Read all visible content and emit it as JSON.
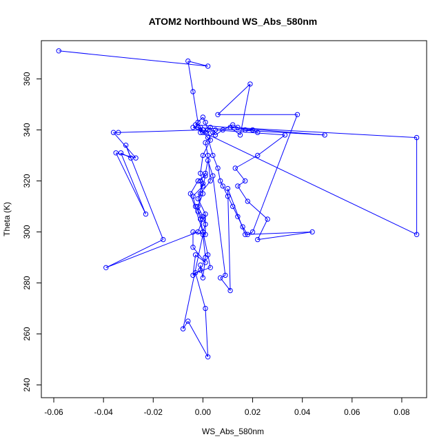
{
  "chart_data": {
    "type": "line",
    "title": "ATOM2 Northbound WS_Abs_580nm",
    "xlabel": "WS_Abs_580nm",
    "ylabel": "Theta (K)",
    "xlim": [
      -0.065,
      0.09
    ],
    "ylim": [
      235,
      375
    ],
    "x_ticks": [
      "-0.06",
      "-0.04",
      "-0.02",
      "0.00",
      "0.02",
      "0.04",
      "0.06",
      "0.08"
    ],
    "y_ticks": [
      "240",
      "260",
      "280",
      "300",
      "320",
      "340",
      "360"
    ],
    "grid": false,
    "marker": "open-circle",
    "colors": {
      "series": "#0000ff",
      "axis": "#000000",
      "background": "#ffffff"
    },
    "series": [
      {
        "x": [
          -0.058,
          0.002,
          -0.006,
          -0.004,
          -0.002,
          -0.001,
          0.0,
          0.002,
          0.004,
          0.006,
          0.007,
          0.008,
          0.01,
          0.012,
          0.014,
          0.016,
          0.018,
          0.02,
          0.038,
          0.006,
          0.019,
          0.015,
          0.011,
          0.086,
          0.086,
          -0.004,
          0.049,
          -0.003,
          0.0,
          0.001,
          0.002,
          0.003,
          0.0,
          -0.001,
          0.0,
          -0.002,
          0.001,
          0.001,
          -0.004,
          -0.004,
          0.001,
          -0.003,
          -0.004,
          -0.001,
          -0.001,
          0.0,
          0.001,
          0.0,
          -0.008,
          -0.006,
          0.002,
          0.001,
          -0.003,
          0.003,
          0.002,
          0.0,
          0.001,
          0.0,
          -0.002,
          0.0,
          -0.001,
          0.001,
          0.002,
          0.004,
          0.009,
          0.007,
          0.011,
          0.01,
          0.017,
          0.044,
          0.022,
          0.026,
          0.018,
          0.014,
          0.017,
          0.013,
          0.022,
          0.033,
          0.005,
          0.001,
          0.002,
          0.003,
          -0.001,
          -0.002,
          -0.001,
          0.0,
          -0.005,
          -0.002,
          0.001,
          0.0,
          -0.004,
          -0.003,
          0.0,
          -0.002,
          -0.039,
          -0.016,
          -0.031,
          -0.029,
          -0.033,
          -0.023,
          -0.035,
          -0.027,
          -0.036,
          -0.034,
          0.0,
          -0.001,
          -0.002,
          0.0,
          0.001,
          0.002,
          0.003,
          0.004,
          0.005,
          0.008,
          0.012,
          0.014,
          0.017,
          0.02,
          0.022
        ],
        "y": [
          371,
          365,
          367,
          355,
          343,
          341,
          339,
          337,
          330,
          325,
          320,
          318,
          314,
          310,
          306,
          302,
          299,
          300,
          346,
          346,
          358,
          338,
          341,
          337,
          299,
          341,
          338,
          342,
          345,
          343,
          340,
          336,
          330,
          323,
          319,
          313,
          307,
          299,
          300,
          294,
          288,
          291,
          283,
          285,
          287,
          282,
          290,
          299,
          262,
          265,
          251,
          270,
          284,
          286,
          291,
          300,
          303,
          306,
          310,
          315,
          320,
          323,
          328,
          322,
          283,
          282,
          277,
          317,
          299,
          300,
          297,
          305,
          312,
          318,
          320,
          325,
          330,
          338,
          340,
          335,
          330,
          320,
          315,
          308,
          305,
          300,
          315,
          320,
          322,
          318,
          314,
          310,
          305,
          300,
          286,
          297,
          334,
          329,
          331,
          307,
          331,
          329,
          339,
          339,
          340,
          339,
          341,
          340,
          339,
          340,
          341,
          339,
          338,
          340,
          342,
          341,
          340,
          340,
          339
        ]
      }
    ]
  }
}
